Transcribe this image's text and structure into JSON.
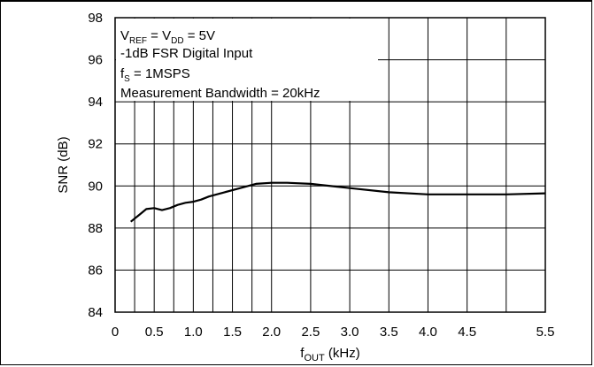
{
  "chart_data": {
    "type": "line",
    "title": "",
    "xlabel": {
      "main": "f",
      "sub": "OUT",
      "unit": "(kHz)"
    },
    "ylabel": "SNR (dB)",
    "xlim": [
      0,
      5.5
    ],
    "ylim": [
      84,
      98
    ],
    "x_ticks": [
      0,
      0.5,
      1.0,
      1.5,
      2.0,
      2.5,
      3.0,
      3.5,
      4.0,
      4.5,
      5.5
    ],
    "x_tick_labels": [
      "0",
      "0.5",
      "1.0",
      "1.5",
      "2.0",
      "2.5",
      "3.0",
      "3.5",
      "4.0",
      "4.5",
      "5.5"
    ],
    "x_grid": [
      0.25,
      0.5,
      0.75,
      1.0,
      1.25,
      1.5,
      1.75,
      2.0,
      2.5,
      3.0,
      3.5,
      4.0,
      4.5,
      5.0,
      5.5
    ],
    "y_ticks": [
      84,
      86,
      88,
      90,
      92,
      94,
      96,
      98
    ],
    "y_tick_labels": [
      "84",
      "86",
      "88",
      "90",
      "92",
      "94",
      "96",
      "98"
    ],
    "grid": true,
    "annotations": [
      {
        "parts": [
          {
            "t": "V"
          },
          {
            "t": "REF",
            "sub": true
          },
          {
            "t": " = V"
          },
          {
            "t": "DD",
            "sub": true
          },
          {
            "t": " = 5V"
          }
        ]
      },
      {
        "parts": [
          {
            "t": "-1dB FSR Digital Input"
          }
        ]
      },
      {
        "parts": [
          {
            "t": "f"
          },
          {
            "t": "S",
            "sub": true
          },
          {
            "t": " = 1MSPS"
          }
        ]
      },
      {
        "parts": [
          {
            "t": "Measurement Bandwidth = 20kHz"
          }
        ]
      }
    ],
    "series": [
      {
        "x": [
          0.2,
          0.3,
          0.4,
          0.5,
          0.6,
          0.7,
          0.8,
          0.9,
          1.0,
          1.1,
          1.2,
          1.4,
          1.6,
          1.8,
          2.0,
          2.2,
          2.5,
          3.0,
          3.5,
          4.0,
          4.5,
          5.0,
          5.5
        ],
        "values": [
          88.3,
          88.6,
          88.9,
          88.95,
          88.85,
          88.95,
          89.1,
          89.2,
          89.25,
          89.35,
          89.5,
          89.7,
          89.9,
          90.1,
          90.15,
          90.15,
          90.1,
          89.9,
          89.7,
          89.6,
          89.6,
          89.6,
          89.65
        ]
      }
    ]
  }
}
